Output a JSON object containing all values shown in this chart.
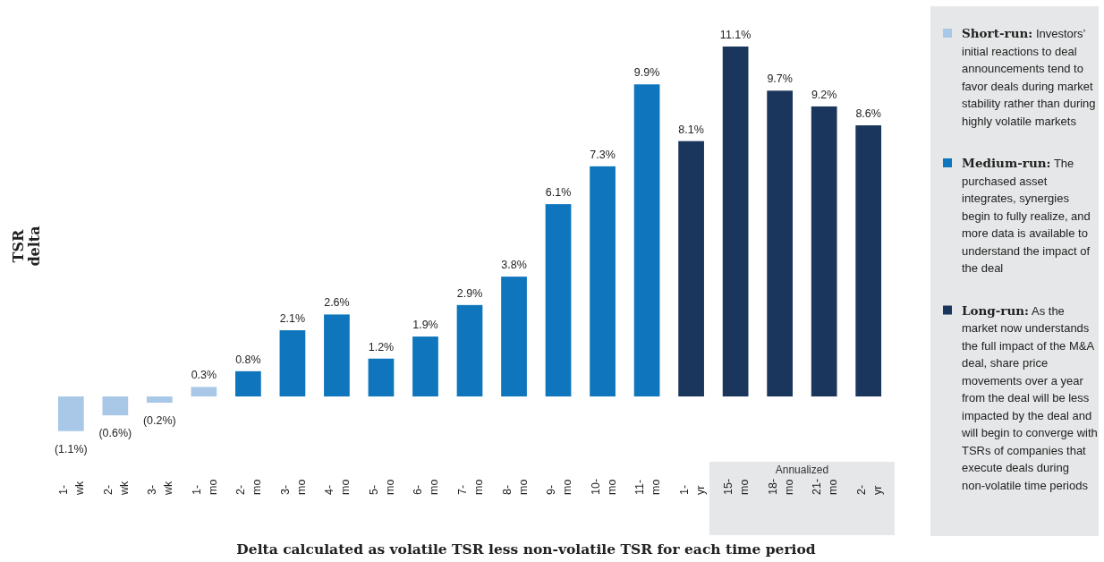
{
  "chart_data": {
    "type": "bar",
    "ylabel": "TSR delta",
    "xlabel": "Delta calculated as volatile TSR less non-volatile TSR for each time period",
    "legend": "right",
    "categories": [
      "1-wk",
      "2-wk",
      "3-wk",
      "1-mo",
      "2-mo",
      "3-mo",
      "4-mo",
      "5-mo",
      "6-mo",
      "7-mo",
      "8-mo",
      "9-mo",
      "10-mo",
      "11-mo",
      "1-yr",
      "15-mo",
      "18-mo",
      "21-mo",
      "2-yr"
    ],
    "series": [
      {
        "name": "Short-run:",
        "color": "#a9c8e8",
        "values": [
          -1.1,
          -0.6,
          -0.2,
          0.3,
          null,
          null,
          null,
          null,
          null,
          null,
          null,
          null,
          null,
          null,
          null,
          null,
          null,
          null,
          null
        ],
        "value_labels": [
          "(1.1%)",
          "(0.6%)",
          "(0.2%)",
          "0.3%",
          null,
          null,
          null,
          null,
          null,
          null,
          null,
          null,
          null,
          null,
          null,
          null,
          null,
          null,
          null
        ]
      },
      {
        "name": "Medium-run:",
        "color": "#0f75bc",
        "values": [
          null,
          null,
          null,
          null,
          0.8,
          2.1,
          2.6,
          1.2,
          1.9,
          2.9,
          3.8,
          6.1,
          7.3,
          9.9,
          null,
          null,
          null,
          null,
          null
        ],
        "value_labels": [
          null,
          null,
          null,
          null,
          "0.8%",
          "2.1%",
          "2.6%",
          "1.2%",
          "1.9%",
          "2.9%",
          "3.8%",
          "6.1%",
          "7.3%",
          "9.9%",
          null,
          null,
          null,
          null,
          null
        ]
      },
      {
        "name": "Long-run:",
        "color": "#1b365d",
        "values": [
          null,
          null,
          null,
          null,
          null,
          null,
          null,
          null,
          null,
          null,
          null,
          null,
          null,
          null,
          8.1,
          11.1,
          9.7,
          9.2,
          8.6
        ],
        "value_labels": [
          null,
          null,
          null,
          null,
          null,
          null,
          null,
          null,
          null,
          null,
          null,
          null,
          null,
          null,
          "8.1%",
          "11.1%",
          "9.7%",
          "9.2%",
          "8.6%"
        ]
      }
    ],
    "annotations": [
      "Investors’ initial reactions to deal announcements tend to favor deals during market stability rather than during highly volatile markets",
      "The purchased asset integrates, synergies begin to fully realize, and more data is available to understand the impact of the deal",
      "As the market now understands the full impact of the M&A deal, share price movements over a year from the deal will be less impacted by the deal and will begin to converge with TSRs of companies that execute deals during non-volatile time periods",
      "Annualized"
    ]
  }
}
